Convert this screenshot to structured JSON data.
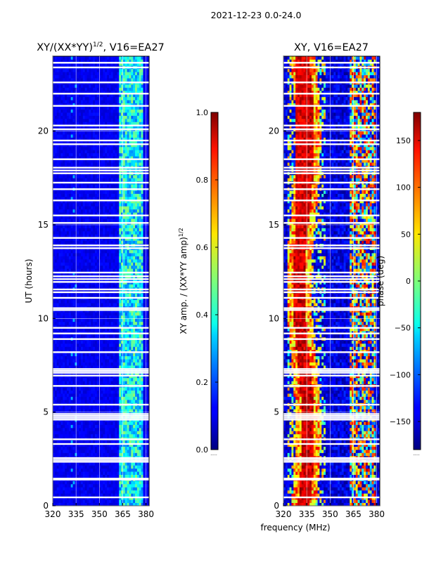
{
  "figure_title": "2021-12-23 0.0-24.0",
  "chart_data": [
    {
      "type": "heatmap",
      "title": "XY/(XX*YY)^{1/2}, V16=EA27",
      "title_main": "XY/(XX*YY)",
      "title_sup": "1/2",
      "title_tail": ", V16=EA27",
      "xlabel": "",
      "ylabel": "UT (hours)",
      "xlim": [
        320,
        382
      ],
      "ylim": [
        0,
        24
      ],
      "xticks": [
        320,
        335,
        350,
        365,
        380
      ],
      "yticks": [
        0,
        5,
        10,
        15,
        20
      ],
      "grid": true,
      "colorbar": {
        "label": "XY amp. / (XX*YY amp)^{1/2}",
        "label_main": "XY amp. / (XX*YY amp)",
        "label_sup": "1/2",
        "range": [
          0.0,
          1.0
        ],
        "ticks": [
          "0.0",
          "0.2",
          "0.4",
          "0.6",
          "0.8",
          "1.0"
        ],
        "tick_values": [
          0.0,
          0.2,
          0.4,
          0.6,
          0.8,
          1.0
        ]
      },
      "description": "Amplitude mostly low (~0.05-0.15) across band; elevated (~0.3-0.5) in 362-378 MHz sub-band."
    },
    {
      "type": "heatmap",
      "title": "XY, V16=EA27",
      "xlabel": "frequency (MHz)",
      "ylabel": "",
      "xlim": [
        320,
        382
      ],
      "ylim": [
        0,
        24
      ],
      "xticks": [
        320,
        335,
        350,
        365,
        380
      ],
      "yticks": [
        0,
        5,
        10,
        15,
        20
      ],
      "grid": true,
      "colorbar": {
        "label": "phase (deg)",
        "range": [
          -180,
          180
        ],
        "ticks": [
          "−150",
          "−100",
          "−50",
          "0",
          "50",
          "100",
          "150"
        ],
        "tick_values": [
          -150,
          -100,
          -50,
          0,
          50,
          100,
          150
        ]
      },
      "description": "Phase mostly near -150 deg; structured high-phase features near 325-345 MHz and 362-378 MHz."
    }
  ],
  "flagged_hours": [
    0.45,
    1.4,
    1.45,
    2.35,
    2.45,
    2.55,
    3.3,
    3.55,
    4.6,
    4.7,
    4.8,
    4.9,
    5.4,
    6.4,
    6.95,
    7.1,
    7.2,
    7.3,
    8.2,
    8.9,
    9.2,
    9.5,
    10.45,
    10.55,
    11.1,
    11.4,
    11.55,
    11.95,
    12.1,
    12.25,
    12.45,
    13.75,
    13.9,
    14.3,
    15.1,
    15.5,
    16.3,
    16.9,
    17.25,
    17.75,
    17.9,
    18.05,
    18.5,
    19.3,
    19.5,
    20.1,
    20.3,
    21.35,
    22.0,
    22.6,
    23.4,
    23.65
  ]
}
